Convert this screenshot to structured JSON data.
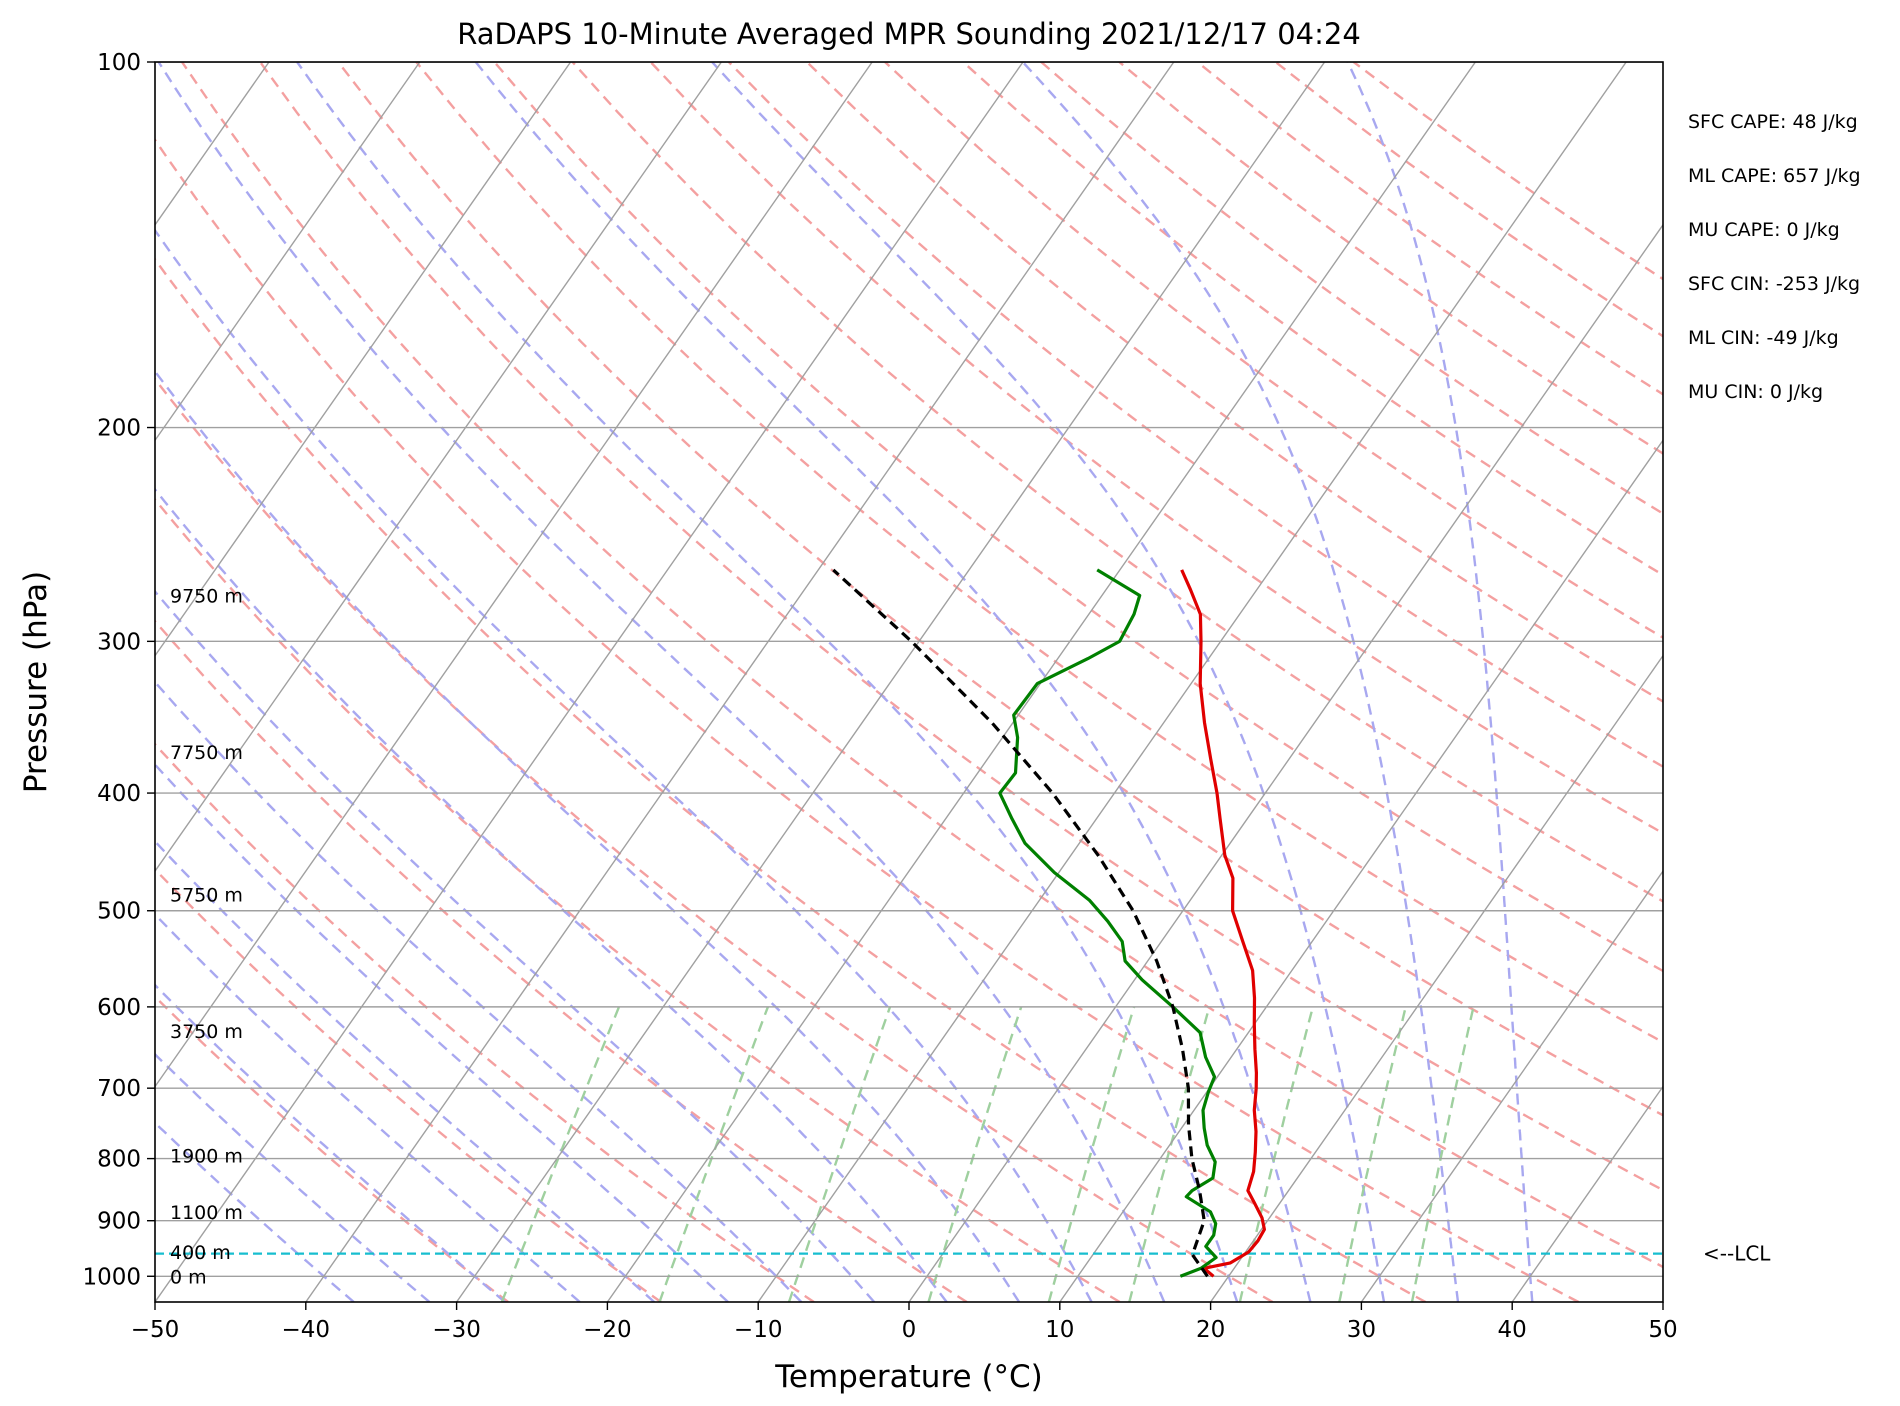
{
  "chart_data": {
    "type": "line",
    "title": "RaDAPS 10-Minute Averaged MPR Sounding 2021/12/17 04:24",
    "xlabel": "Temperature (°C)",
    "ylabel": "Pressure (hPa)",
    "xlim": [
      -50,
      50
    ],
    "ylim": [
      1050,
      100
    ],
    "y_scale": "log",
    "skew": "skew-T",
    "grid": true,
    "x_ticks": [
      "−50",
      "−40",
      "−30",
      "−20",
      "−10",
      "0",
      "10",
      "20",
      "30",
      "40",
      "50"
    ],
    "x_tick_values": [
      -50,
      -40,
      -30,
      -20,
      -10,
      0,
      10,
      20,
      30,
      40,
      50
    ],
    "y_ticks": [
      "100",
      "200",
      "300",
      "400",
      "500",
      "600",
      "700",
      "800",
      "900",
      "1000"
    ],
    "y_tick_values": [
      100,
      200,
      300,
      400,
      500,
      600,
      700,
      800,
      900,
      1000
    ],
    "series": [
      {
        "role": "temperature",
        "color": "#e00000",
        "points": [
          [
            1000,
            19.0
          ],
          [
            985,
            18.0
          ],
          [
            975,
            19.5
          ],
          [
            955,
            20.2
          ],
          [
            935,
            20.3
          ],
          [
            915,
            20.2
          ],
          [
            895,
            19.5
          ],
          [
            870,
            18.3
          ],
          [
            850,
            17.3
          ],
          [
            820,
            16.8
          ],
          [
            790,
            16.0
          ],
          [
            760,
            15.1
          ],
          [
            730,
            14.0
          ],
          [
            700,
            13.1
          ],
          [
            680,
            12.4
          ],
          [
            650,
            11.2
          ],
          [
            620,
            10.0
          ],
          [
            590,
            8.8
          ],
          [
            560,
            7.4
          ],
          [
            530,
            5.4
          ],
          [
            500,
            3.3
          ],
          [
            470,
            1.8
          ],
          [
            450,
            0.2
          ],
          [
            420,
            -1.8
          ],
          [
            400,
            -3.2
          ],
          [
            375,
            -5.2
          ],
          [
            350,
            -7.3
          ],
          [
            325,
            -9.4
          ],
          [
            300,
            -11.3
          ],
          [
            285,
            -12.6
          ],
          [
            272,
            -14.4
          ],
          [
            262,
            -15.9
          ]
        ]
      },
      {
        "role": "dewpoint",
        "color": "#008000",
        "points": [
          [
            1000,
            16.8
          ],
          [
            985,
            17.8
          ],
          [
            965,
            18.3
          ],
          [
            945,
            17.1
          ],
          [
            925,
            17.1
          ],
          [
            905,
            16.7
          ],
          [
            885,
            15.8
          ],
          [
            860,
            13.5
          ],
          [
            850,
            13.6
          ],
          [
            830,
            14.4
          ],
          [
            805,
            13.8
          ],
          [
            780,
            12.5
          ],
          [
            755,
            11.5
          ],
          [
            730,
            10.6
          ],
          [
            705,
            10.1
          ],
          [
            685,
            9.8
          ],
          [
            660,
            8.3
          ],
          [
            630,
            6.8
          ],
          [
            600,
            3.8
          ],
          [
            570,
            0.5
          ],
          [
            550,
            -1.5
          ],
          [
            530,
            -2.6
          ],
          [
            510,
            -4.5
          ],
          [
            490,
            -6.7
          ],
          [
            465,
            -10.3
          ],
          [
            440,
            -13.6
          ],
          [
            420,
            -15.6
          ],
          [
            400,
            -17.6
          ],
          [
            385,
            -17.5
          ],
          [
            360,
            -19.0
          ],
          [
            345,
            -20.3
          ],
          [
            325,
            -20.2
          ],
          [
            310,
            -18.0
          ],
          [
            300,
            -16.7
          ],
          [
            285,
            -17.0
          ],
          [
            275,
            -17.5
          ],
          [
            262,
            -21.5
          ]
        ]
      },
      {
        "role": "parcel",
        "color": "#000000",
        "points": [
          [
            1000,
            18.6
          ],
          [
            960,
            16.6
          ],
          [
            900,
            15.8
          ],
          [
            850,
            14.1
          ],
          [
            800,
            12.1
          ],
          [
            750,
            10.3
          ],
          [
            700,
            8.6
          ],
          [
            650,
            6.4
          ],
          [
            600,
            3.8
          ],
          [
            550,
            0.6
          ],
          [
            500,
            -3.3
          ],
          [
            450,
            -8.2
          ],
          [
            400,
            -14.1
          ],
          [
            350,
            -21.4
          ],
          [
            300,
            -30.5
          ],
          [
            262,
            -39.0
          ]
        ]
      }
    ],
    "height_labels": [
      {
        "text": "9750 m",
        "p": 275
      },
      {
        "text": "7750 m",
        "p": 370
      },
      {
        "text": "5750 m",
        "p": 485
      },
      {
        "text": "3750 m",
        "p": 628
      },
      {
        "text": "1900 m",
        "p": 795
      },
      {
        "text": "1100 m",
        "p": 885
      },
      {
        "text": "400 m",
        "p": 955
      },
      {
        "text": "0 m",
        "p": 1000
      }
    ],
    "lcl": {
      "p": 958,
      "label": "<--LCL",
      "color": "#17becf"
    },
    "annotations": [
      "SFC CAPE: 48 J/kg",
      "ML CAPE: 657 J/kg",
      "MU CAPE: 0 J/kg",
      "SFC CIN: -253 J/kg",
      "ML CIN: -49 J/kg",
      "MU CIN: 0 J/kg"
    ],
    "background_lines": {
      "dry_adiabats_color": "#f4a0a0",
      "moist_adiabats_color": "#a8a8f0",
      "mixing_ratio_color": "#9fd09f",
      "isotherm_color": "#a0a0a0"
    }
  }
}
